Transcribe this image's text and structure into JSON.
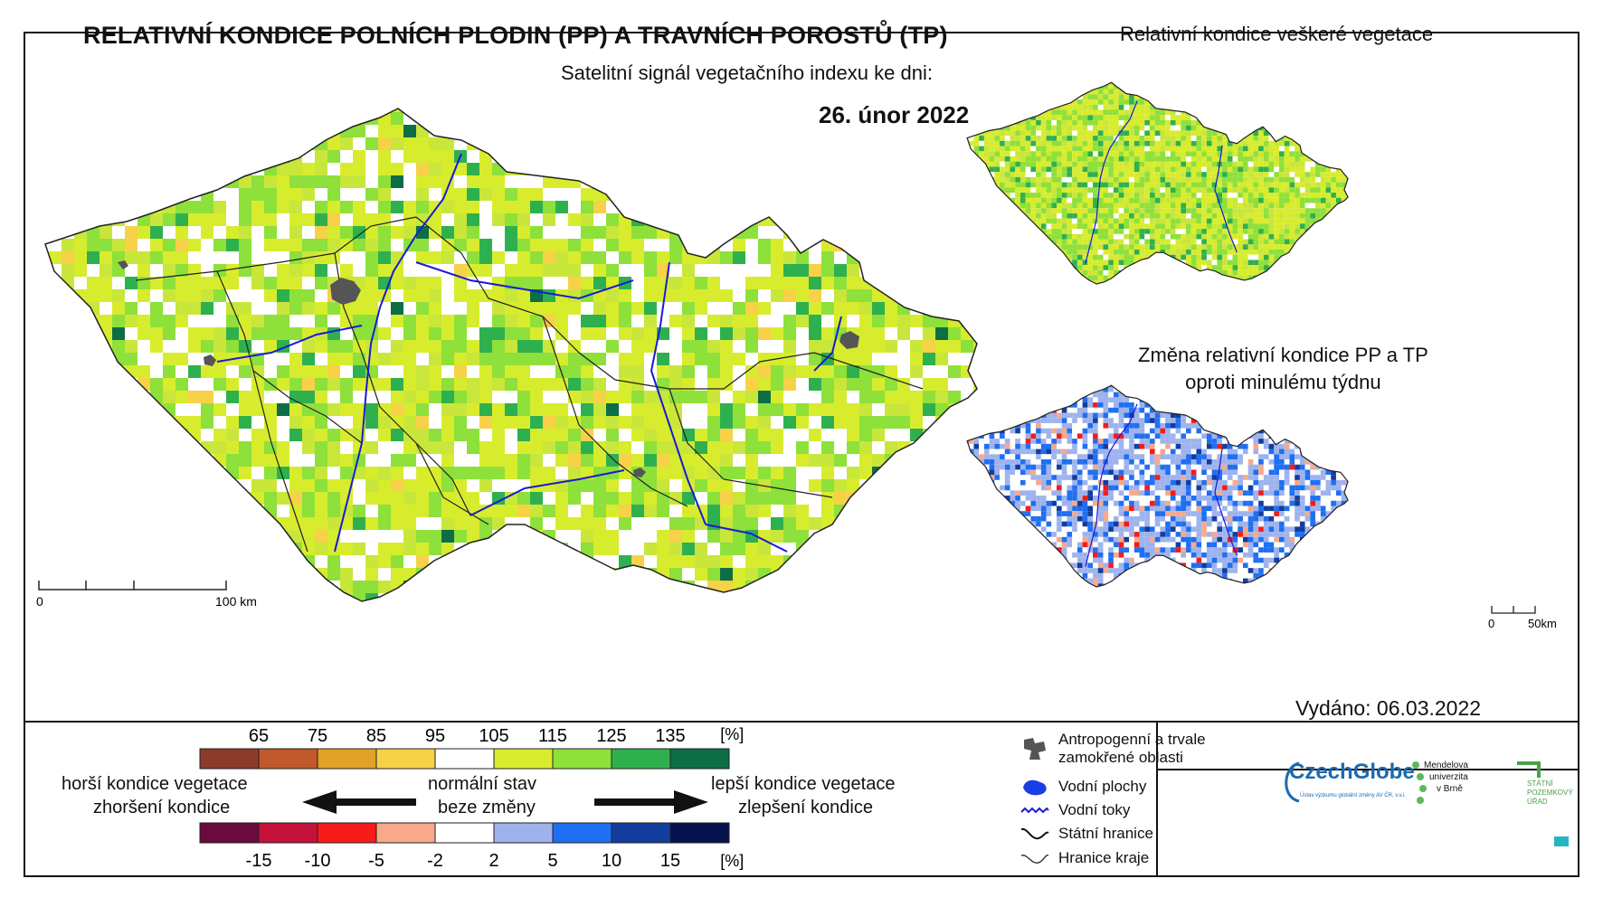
{
  "title": "RELATIVNÍ KONDICE POLNÍCH PLODIN (PP) A TRAVNÍCH POROSTŮ (TP)",
  "subtitle": "Satelitní signál vegetačního indexu ke dni:",
  "date": "26. únor 2022",
  "right_top_title": "Relativní kondice veškeré vegetace",
  "right_bottom_title_line1": "Změna relativní kondice PP a TP",
  "right_bottom_title_line2": "oproti minulému týdnu",
  "main_scale": {
    "zero": "0",
    "end": "100 km"
  },
  "small_scale": {
    "zero": "0",
    "end": "50km"
  },
  "condition_legend": {
    "ticks": [
      "65",
      "75",
      "85",
      "95",
      "105",
      "115",
      "125",
      "135"
    ],
    "unit": "[%]",
    "colors": [
      "#8b3a2b",
      "#c0592b",
      "#e2a128",
      "#f7d148",
      "#ffffff",
      "#d8ec2e",
      "#8ee03a",
      "#2fb04e",
      "#0d6e45"
    ]
  },
  "change_legend": {
    "ticks": [
      "-15",
      "-10",
      "-5",
      "-2",
      "2",
      "5",
      "10",
      "15"
    ],
    "unit": "[%]",
    "colors": [
      "#6b0a3c",
      "#c4113a",
      "#f71a1a",
      "#f7a98a",
      "#ffffff",
      "#9eb3ee",
      "#1f6ff2",
      "#123d9c",
      "#07134f"
    ]
  },
  "labels": {
    "worse1": "horší kondice vegetace",
    "worse2": "zhoršení kondice",
    "normal1": "normální stav",
    "normal2": "beze změny",
    "better1": "lepší kondice vegetace",
    "better2": "zlepšení kondice"
  },
  "symbols": {
    "anthro1": "Antropogenní a trvale",
    "anthro2": "zamokřené oblasti",
    "water_areas": "Vodní plochy",
    "rivers": "Vodní toky",
    "border": "Státní hranice",
    "regions": "Hranice kraje"
  },
  "issued": "Vydáno: 06.03.2022",
  "logos": {
    "czechglobe": "CzechGlobe",
    "czechglobe_sub": "Ústav výzkumu globální změny AV ČR, v.v.i.",
    "mendel1": "Mendelova",
    "mendel2": "univerzita",
    "mendel3": "v Brně",
    "spu1": "STÁTNÍ",
    "spu2": "POZEMKOVÝ",
    "spu3": "ÚŘAD"
  },
  "map_palette": {
    "main": [
      "#ffffff",
      "#d8ec2e",
      "#c9e63a",
      "#8ee03a",
      "#2fb04e",
      "#f7d148",
      "#0d6e45"
    ],
    "all_vegetation": [
      "#d8ec2e",
      "#8ee03a",
      "#c9e63a",
      "#2fb04e",
      "#ffffff"
    ],
    "change": [
      "#ffffff",
      "#9eb3ee",
      "#1f6ff2",
      "#123d9c",
      "#f7a98a",
      "#f71a1a"
    ]
  }
}
